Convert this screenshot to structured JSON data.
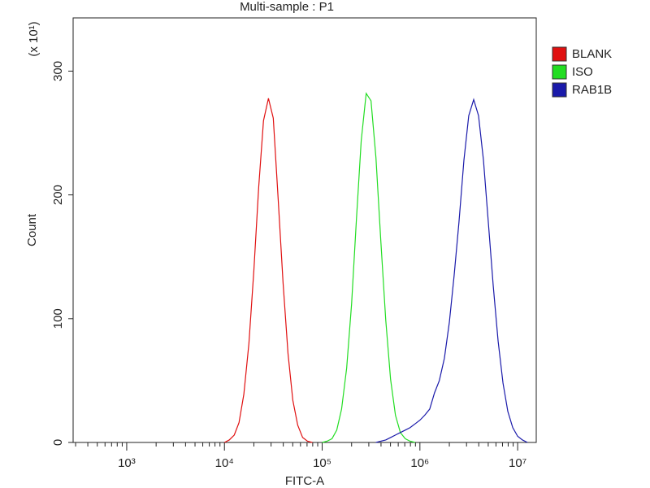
{
  "chart_data": {
    "type": "line",
    "title": "Multi-sample : P1",
    "x_label": "FITC-A",
    "y_label": "Count",
    "y_scale_label": "(x 10¹)",
    "xscale": "log",
    "xlim": [
      283,
      15500000
    ],
    "ylim": [
      0,
      343
    ],
    "xticks": [
      {
        "value": 1000,
        "label": "10³"
      },
      {
        "value": 10000,
        "label": "10⁴"
      },
      {
        "value": 100000,
        "label": "10⁵"
      },
      {
        "value": 1000000,
        "label": "10⁶"
      },
      {
        "value": 10000000,
        "label": "10⁷"
      }
    ],
    "xticks_minor": [
      300,
      400,
      500,
      600,
      700,
      800,
      900,
      2000,
      3000,
      4000,
      5000,
      6000,
      7000,
      8000,
      9000,
      20000,
      30000,
      40000,
      50000,
      60000,
      70000,
      80000,
      90000,
      200000,
      300000,
      400000,
      500000,
      600000,
      700000,
      800000,
      900000,
      2000000,
      3000000,
      4000000,
      5000000,
      6000000,
      7000000,
      8000000,
      9000000
    ],
    "yticks": [
      0,
      100,
      200,
      300
    ],
    "legend": "right",
    "x": [
      10000,
      11200,
      12600,
      14100,
      15800,
      17800,
      20000,
      22400,
      25100,
      28200,
      31600,
      35500,
      39800,
      44700,
      50100,
      56200,
      63100,
      70800,
      79400,
      89100,
      100000,
      112000,
      126000,
      141000,
      158000,
      178000,
      200000,
      224000,
      251000,
      282000,
      316000,
      355000,
      398000,
      447000,
      501000,
      562000,
      631000,
      708000,
      794000,
      891000,
      1000000,
      1120000,
      1260000,
      1410000,
      1580000,
      1780000,
      2000000,
      2240000,
      2510000,
      2820000,
      3160000,
      3550000,
      3980000,
      4470000,
      5010000,
      5620000,
      6310000,
      7080000,
      7940000,
      8910000,
      10000000,
      11200000,
      12600000
    ],
    "series": [
      {
        "name": "BLANK",
        "color": "#e01010",
        "values": [
          0,
          2,
          6,
          16,
          39,
          80,
          139,
          206,
          260,
          278,
          262,
          196,
          129,
          72,
          34,
          14,
          4,
          1,
          0,
          null,
          null,
          null,
          null,
          null,
          null,
          null,
          null,
          null,
          null,
          null,
          null,
          null,
          null,
          null,
          null,
          null,
          null,
          null,
          null,
          null,
          null,
          null,
          null,
          null,
          null,
          null,
          null,
          null,
          null,
          null,
          null,
          null,
          null,
          null,
          null,
          null,
          null,
          null,
          null,
          null,
          null,
          null,
          null
        ]
      },
      {
        "name": "ISO",
        "color": "#22dd22",
        "values": [
          null,
          null,
          null,
          null,
          null,
          null,
          null,
          null,
          null,
          null,
          null,
          null,
          null,
          null,
          null,
          null,
          null,
          null,
          null,
          null,
          0,
          1,
          3,
          10,
          27,
          60,
          112,
          180,
          244,
          282,
          276,
          230,
          163,
          99,
          51,
          22,
          8,
          3,
          1,
          0,
          null,
          null,
          null,
          null,
          null,
          null,
          null,
          null,
          null,
          null,
          null,
          null,
          null,
          null,
          null,
          null,
          null,
          null,
          null,
          null,
          null,
          null,
          null
        ]
      },
      {
        "name": "RAB1B",
        "color": "#1a1aaa",
        "values": [
          null,
          null,
          null,
          null,
          null,
          null,
          null,
          null,
          null,
          null,
          null,
          null,
          null,
          null,
          null,
          null,
          null,
          null,
          null,
          null,
          null,
          null,
          null,
          null,
          null,
          null,
          null,
          null,
          null,
          null,
          null,
          0,
          1,
          2,
          4,
          6,
          8,
          10,
          12,
          15,
          18,
          22,
          27,
          40,
          50,
          68,
          97,
          135,
          178,
          228,
          264,
          277,
          264,
          228,
          178,
          127,
          82,
          48,
          25,
          12,
          5,
          2,
          0
        ]
      }
    ]
  }
}
